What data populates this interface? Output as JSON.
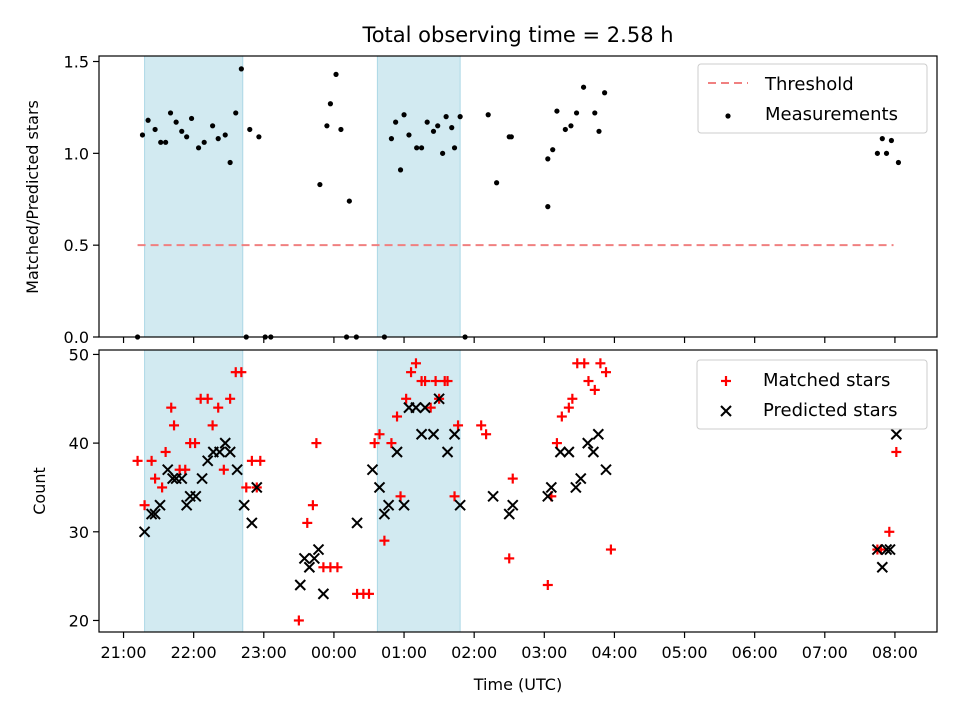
{
  "title": "Total observing time = 2.58 h",
  "xlabel": "Time (UTC)",
  "x_ticks": [
    "21:00",
    "22:00",
    "23:00",
    "00:00",
    "01:00",
    "02:00",
    "03:00",
    "04:00",
    "05:00",
    "06:00",
    "07:00",
    "08:00"
  ],
  "colors": {
    "threshold": "#f08080",
    "measurement": "#000000",
    "matched": "#ff0000",
    "predicted": "#000000",
    "span": "#add8e6"
  },
  "chart_data": [
    {
      "type": "scatter",
      "panel": "top",
      "ylabel": "Matched/Predicted stars",
      "ylim": [
        0,
        1.53
      ],
      "y_ticks": [
        "0.0",
        "0.5",
        "1.0",
        "1.5"
      ],
      "x_axis": "time of day (UTC), decimal hours after 21:00 continue past 24",
      "xlim": [
        20.65,
        32.6
      ],
      "observing_spans": [
        [
          21.3,
          22.7
        ],
        [
          24.62,
          25.8
        ]
      ],
      "legend_position": "upper right",
      "threshold": {
        "name": "Threshold",
        "value": 0.5,
        "x_range": [
          21.2,
          31.98
        ]
      },
      "series": [
        {
          "name": "Measurements",
          "x": [
            21.2,
            21.27,
            21.35,
            21.45,
            21.53,
            21.6,
            21.67,
            21.75,
            21.83,
            21.9,
            21.97,
            22.07,
            22.15,
            22.27,
            22.35,
            22.45,
            22.52,
            22.6,
            22.68,
            22.75,
            22.8,
            22.93,
            23.02,
            23.1,
            23.8,
            23.9,
            23.95,
            24.03,
            24.1,
            24.18,
            24.22,
            24.32,
            24.72,
            24.82,
            24.88,
            24.95,
            25.0,
            25.07,
            25.18,
            25.25,
            25.33,
            25.42,
            25.48,
            25.55,
            25.6,
            25.68,
            25.72,
            25.8,
            25.87,
            26.2,
            26.32,
            26.5,
            26.53,
            27.05,
            27.05,
            27.12,
            27.18,
            27.3,
            27.38,
            27.46,
            27.56,
            27.72,
            27.78,
            27.86,
            31.75,
            31.82,
            31.88,
            31.95,
            32.05
          ],
          "y": [
            0.0,
            1.1,
            1.18,
            1.13,
            1.06,
            1.06,
            1.22,
            1.17,
            1.12,
            1.09,
            1.19,
            1.03,
            1.06,
            1.15,
            1.08,
            1.1,
            0.95,
            1.22,
            1.46,
            0.0,
            1.13,
            1.09,
            0.0,
            0.0,
            0.83,
            1.15,
            1.27,
            1.43,
            1.13,
            0.0,
            0.74,
            0.0,
            0.0,
            1.08,
            1.17,
            0.91,
            1.21,
            1.1,
            1.03,
            1.03,
            1.17,
            1.12,
            1.15,
            1.0,
            1.2,
            1.14,
            1.03,
            1.2,
            0.0,
            1.21,
            0.84,
            1.09,
            1.09,
            0.71,
            0.97,
            1.02,
            1.23,
            1.13,
            1.15,
            1.22,
            1.36,
            1.22,
            1.12,
            1.33,
            1.0,
            1.08,
            1.0,
            1.07,
            0.95
          ]
        }
      ]
    },
    {
      "type": "scatter",
      "panel": "bottom",
      "ylabel": "Count",
      "ylim": [
        18.7,
        50.5
      ],
      "y_ticks": [
        "20",
        "30",
        "40",
        "50"
      ],
      "x_axis": "time of day (UTC), decimal hours after 21:00 continue past 24",
      "xlim": [
        20.65,
        32.6
      ],
      "observing_spans": [
        [
          21.3,
          22.7
        ],
        [
          24.62,
          25.8
        ]
      ],
      "legend_position": "upper right",
      "series": [
        {
          "name": "Matched stars",
          "marker": "plus",
          "x": [
            21.2,
            21.3,
            21.4,
            21.45,
            21.55,
            21.6,
            21.68,
            21.72,
            21.8,
            21.88,
            21.95,
            22.02,
            22.1,
            22.2,
            22.27,
            22.35,
            22.43,
            22.52,
            22.6,
            22.68,
            22.75,
            22.83,
            22.9,
            22.95,
            23.5,
            23.62,
            23.7,
            23.75,
            23.85,
            23.95,
            24.05,
            24.33,
            24.42,
            24.5,
            24.58,
            24.65,
            24.72,
            24.82,
            24.9,
            24.95,
            25.03,
            25.1,
            25.17,
            25.25,
            25.3,
            25.38,
            25.45,
            25.5,
            25.58,
            25.62,
            25.72,
            25.77,
            26.1,
            26.17,
            26.5,
            26.55,
            27.05,
            27.1,
            27.18,
            27.25,
            27.35,
            27.4,
            27.47,
            27.57,
            27.63,
            27.72,
            27.8,
            27.88,
            27.95,
            31.75,
            31.8,
            31.92,
            32.02
          ],
          "y": [
            38,
            33,
            38,
            36,
            35,
            39,
            44,
            42,
            37,
            37,
            40,
            40,
            45,
            45,
            42,
            44,
            37,
            45,
            48,
            48,
            35,
            38,
            35,
            38,
            20,
            31,
            33,
            40,
            26,
            26,
            26,
            23,
            23,
            23,
            40,
            41,
            29,
            40,
            43,
            34,
            45,
            48,
            49,
            47,
            47,
            44,
            47,
            45,
            47,
            47,
            34,
            42,
            42,
            41,
            27,
            36,
            24,
            34,
            40,
            43,
            44,
            45,
            49,
            49,
            47,
            46,
            49,
            48,
            28,
            28,
            28,
            30,
            39
          ]
        },
        {
          "name": "Predicted stars",
          "marker": "x",
          "x": [
            21.3,
            21.4,
            21.45,
            21.52,
            21.63,
            21.7,
            21.75,
            21.83,
            21.9,
            21.95,
            22.03,
            22.12,
            22.2,
            22.28,
            22.37,
            22.45,
            22.52,
            22.62,
            22.72,
            22.83,
            22.9,
            23.52,
            23.58,
            23.65,
            23.72,
            23.78,
            23.85,
            24.33,
            24.55,
            24.65,
            24.72,
            24.78,
            24.9,
            25.0,
            25.07,
            25.17,
            25.25,
            25.3,
            25.42,
            25.5,
            25.62,
            25.72,
            25.8,
            26.27,
            26.5,
            26.55,
            27.05,
            27.1,
            27.23,
            27.35,
            27.45,
            27.52,
            27.62,
            27.7,
            27.77,
            27.88,
            31.75,
            31.82,
            31.88,
            31.93,
            32.02
          ],
          "y": [
            30,
            32,
            32,
            33,
            37,
            36,
            36,
            36,
            33,
            34,
            34,
            36,
            38,
            39,
            39,
            40,
            39,
            37,
            33,
            31,
            35,
            24,
            27,
            26,
            27,
            28,
            23,
            31,
            37,
            35,
            32,
            33,
            39,
            33,
            44,
            44,
            41,
            44,
            41,
            45,
            39,
            41,
            33,
            34,
            32,
            33,
            34,
            35,
            39,
            39,
            35,
            36,
            40,
            39,
            41,
            37,
            28,
            26,
            28,
            28,
            41
          ]
        }
      ]
    }
  ]
}
